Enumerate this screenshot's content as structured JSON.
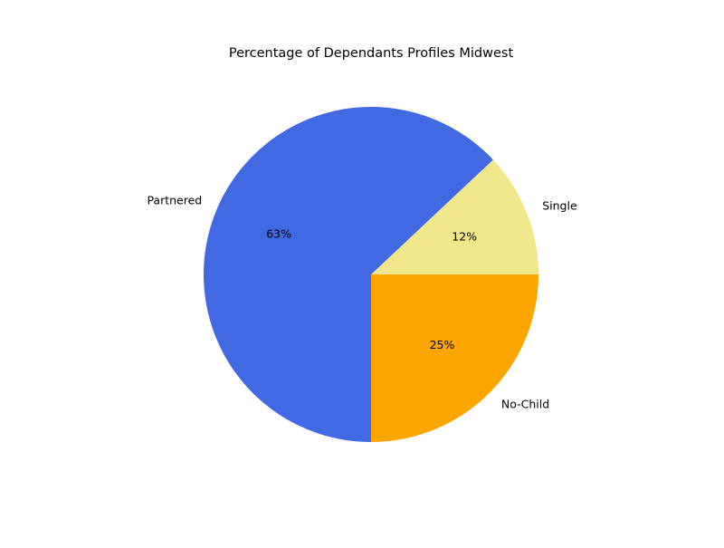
{
  "chart_data": {
    "type": "pie",
    "title": "Percentage of Dependants Profiles Midwest",
    "slices": [
      {
        "label": "Single",
        "value": 12,
        "pct_label": "12%",
        "color": "#f0e68c"
      },
      {
        "label": "Partnered",
        "value": 63,
        "pct_label": "63%",
        "color": "#4169e1"
      },
      {
        "label": "No-Child",
        "value": 25,
        "pct_label": "25%",
        "color": "#ffa500"
      }
    ],
    "start_angle_deg": 0,
    "direction": "counterclockwise",
    "legend": "none"
  }
}
